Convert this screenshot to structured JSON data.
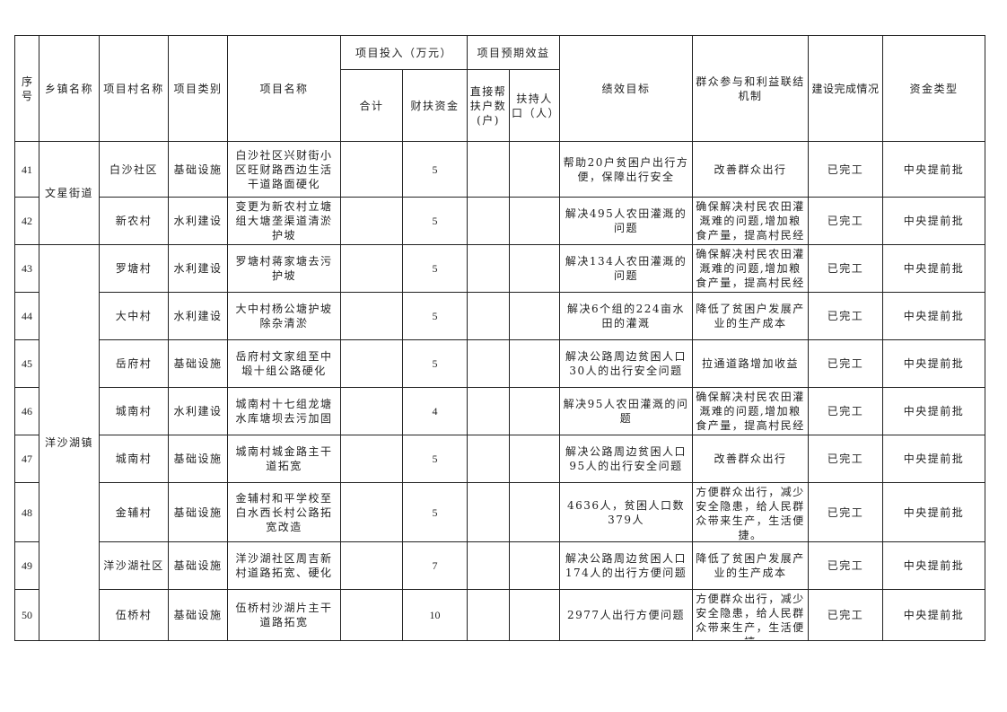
{
  "header": {
    "seq": "序号",
    "town": "乡镇名称",
    "village": "项目村名称",
    "category": "项目类别",
    "project_name": "项目名称",
    "investment_group": "项目投入（万元）",
    "total": "合计",
    "fiscal_fund": "财扶资金",
    "benefit_group": "项目预期效益",
    "households": "直接帮扶户数(户)",
    "population": "扶持人口（人）",
    "performance_goal": "绩效目标",
    "mechanism": "群众参与和利益联结机制",
    "completion": "建设完成情况",
    "fund_type": "资金类型"
  },
  "towns": [
    {
      "name": "文星街道",
      "span": 2
    },
    {
      "name": "洋沙湖镇",
      "span": 8
    }
  ],
  "rows": [
    {
      "seq": "41",
      "village": "白沙社区",
      "category": "基础设施",
      "name": "白沙社区兴财街小区旺财路西边生活干道路面硬化",
      "total": "",
      "fiscal": "5",
      "households": "",
      "population": "",
      "goal": "帮助20户贫困户出行方便，保障出行安全",
      "mechanism": "改善群众出行",
      "completion": "已完工",
      "fund_type": "中央提前批"
    },
    {
      "seq": "42",
      "village": "新农村",
      "category": "水利建设",
      "name": "变更为新农村立塘组大塘垄渠道清淤护坡",
      "total": "",
      "fiscal": "5",
      "households": "",
      "population": "",
      "goal": "解决495人农田灌溉的问题",
      "mechanism": "确保解决村民农田灌溉难的问题,增加粮食产量，提高村民经济",
      "completion": "已完工",
      "fund_type": "中央提前批"
    },
    {
      "seq": "43",
      "village": "罗塘村",
      "category": "水利建设",
      "name": "罗塘村蒋家塘去污护坡",
      "total": "",
      "fiscal": "5",
      "households": "",
      "population": "",
      "goal": "解决134人农田灌溉的问题",
      "mechanism": "确保解决村民农田灌溉难的问题,增加粮食产量，提高村民经济",
      "completion": "已完工",
      "fund_type": "中央提前批"
    },
    {
      "seq": "44",
      "village": "大中村",
      "category": "水利建设",
      "name": "大中村杨公塘护坡除杂清淤",
      "total": "",
      "fiscal": "5",
      "households": "",
      "population": "",
      "goal": "解决6个组的224亩水田的灌溉",
      "mechanism": "降低了贫困户发展产业的生产成本",
      "completion": "已完工",
      "fund_type": "中央提前批"
    },
    {
      "seq": "45",
      "village": "岳府村",
      "category": "基础设施",
      "name": "岳府村文家组至中塅十组公路硬化",
      "total": "",
      "fiscal": "5",
      "households": "",
      "population": "",
      "goal": "解决公路周边贫困人口30人的出行安全问题",
      "mechanism": "拉通道路增加收益",
      "completion": "已完工",
      "fund_type": "中央提前批"
    },
    {
      "seq": "46",
      "village": "城南村",
      "category": "水利建设",
      "name": "城南村十七组龙塘水库塘坝去污加固",
      "total": "",
      "fiscal": "4",
      "households": "",
      "population": "",
      "goal": "解决95人农田灌溉的问题",
      "mechanism": "确保解决村民农田灌溉难的问题,增加粮食产量，提高村民经济",
      "completion": "已完工",
      "fund_type": "中央提前批"
    },
    {
      "seq": "47",
      "village": "城南村",
      "category": "基础设施",
      "name": "城南村城金路主干道拓宽",
      "total": "",
      "fiscal": "5",
      "households": "",
      "population": "",
      "goal": "解决公路周边贫困人口95人的出行安全问题",
      "mechanism": "改善群众出行",
      "completion": "已完工",
      "fund_type": "中央提前批"
    },
    {
      "seq": "48",
      "village": "金辅村",
      "category": "基础设施",
      "name": "金辅村和平学校至白水西长村公路拓宽改造",
      "total": "",
      "fiscal": "5",
      "households": "",
      "population": "",
      "goal": "4636人，贫困人口数379人",
      "mechanism": "方便群众出行，减少安全隐患，给人民群众带来生产，生活便捷。",
      "completion": "已完工",
      "fund_type": "中央提前批"
    },
    {
      "seq": "49",
      "village": "洋沙湖社区",
      "category": "基础设施",
      "name": "洋沙湖社区周吉新村道路拓宽、硬化",
      "total": "",
      "fiscal": "7",
      "households": "",
      "population": "",
      "goal": "解决公路周边贫困人口174人的出行方便问题",
      "mechanism": "降低了贫困户发展产业的生产成本",
      "completion": "已完工",
      "fund_type": "中央提前批"
    },
    {
      "seq": "50",
      "village": "伍桥村",
      "category": "基础设施",
      "name": "伍桥村沙湖片主干道路拓宽",
      "total": "",
      "fiscal": "10",
      "households": "",
      "population": "",
      "goal": "2977人出行方便问题",
      "mechanism": "方便群众出行，减少安全隐患，给人民群众带来生产，生活便捷",
      "completion": "已完工",
      "fund_type": "中央提前批"
    }
  ]
}
